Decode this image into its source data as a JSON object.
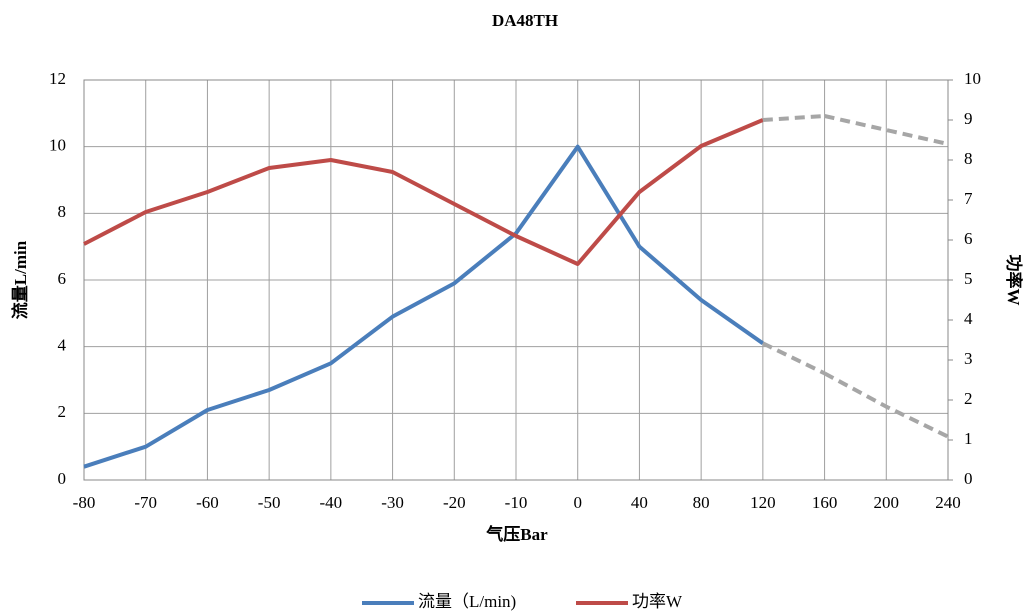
{
  "chart_data": {
    "type": "line",
    "title": "DA48TH",
    "x_label": "气压Bar",
    "y_label": "流量L/min",
    "y2_label": "功率W",
    "categories": [
      "-80",
      "-70",
      "-60",
      "-50",
      "-40",
      "-30",
      "-20",
      "-10",
      "0",
      "40",
      "80",
      "120",
      "160",
      "200",
      "240"
    ],
    "series": [
      {
        "name": "流量（L/min)",
        "color": "#4a7ebb",
        "values": [
          0.4,
          1.0,
          2.1,
          2.7,
          3.5,
          4.9,
          5.9,
          7.4,
          10.0,
          7.0,
          5.4,
          4.1,
          3.2,
          2.2,
          1.3
        ]
      },
      {
        "name": "功率W",
        "color": "#be4b48",
        "axis": "y2",
        "values": [
          5.9,
          6.7,
          7.2,
          7.8,
          8.0,
          7.7,
          6.9,
          6.1,
          5.4,
          7.2,
          8.35,
          9.0,
          9.1,
          8.75,
          8.4
        ]
      }
    ],
    "dashed_after": "120",
    "dashed_color": "#a6a6a6",
    "ylim": [
      0,
      12
    ],
    "yticks": [
      0,
      2,
      4,
      6,
      8,
      10,
      12
    ],
    "y2lim": [
      0,
      10
    ],
    "y2ticks": [
      0,
      1,
      2,
      3,
      4,
      5,
      6,
      7,
      8,
      9,
      10
    ],
    "grid": true,
    "legend": "bottom"
  }
}
